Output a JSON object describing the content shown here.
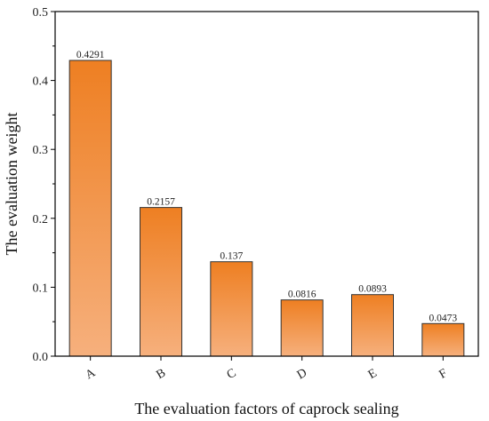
{
  "chart_data": {
    "type": "bar",
    "categories": [
      "A",
      "B",
      "C",
      "D",
      "E",
      "F"
    ],
    "values": [
      0.4291,
      0.2157,
      0.137,
      0.0816,
      0.0893,
      0.0473
    ],
    "data_labels": [
      "0.4291",
      "0.2157",
      "0.137",
      "0.0816",
      "0.0893",
      "0.0473"
    ],
    "title": "",
    "xlabel": "The evaluation  factors of caprock sealing",
    "ylabel": "The evaluation weight",
    "ylim": [
      0,
      0.5
    ],
    "yticks": [
      0.0,
      0.1,
      0.2,
      0.3,
      0.4,
      0.5
    ],
    "ytick_labels": [
      "0.0",
      "0.1",
      "0.2",
      "0.3",
      "0.4",
      "0.5"
    ],
    "grid": false,
    "legend": "none",
    "colors": {
      "bar_top": "#ee7f22",
      "bar_bottom": "#f6b07d",
      "bar_stroke": "#333333",
      "axis": "#000000"
    }
  }
}
